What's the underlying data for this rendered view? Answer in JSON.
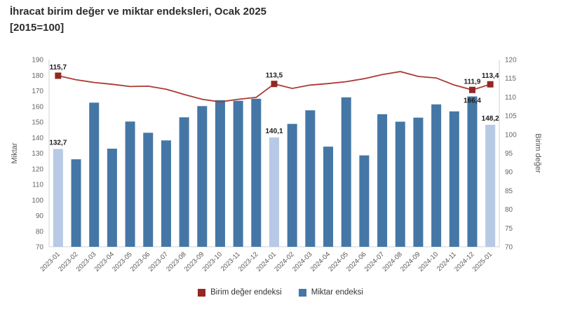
{
  "chart_data": {
    "type": "combo-bar-line",
    "title": "İhracat birim değer ve miktar endeksleri, Ocak 2025",
    "subtitle": "[2015=100]",
    "categories": [
      "2023-01",
      "2023-02",
      "2023-03",
      "2023-04",
      "2023-05",
      "2023-06",
      "2023-07",
      "2023-08",
      "2023-09",
      "2023-10",
      "2023-11",
      "2023-12",
      "2024-01",
      "2024-02",
      "2024-03",
      "2024-04",
      "2024-05",
      "2024-06",
      "2024-07",
      "2024-08",
      "2024-09",
      "2024-10",
      "2024-11",
      "2024-12",
      "2025-01"
    ],
    "series": [
      {
        "name": "Birim değer endeksi",
        "type": "line",
        "axis": "right",
        "color": "#942722",
        "line_color": "#ab3a33",
        "values": [
          115.7,
          114.6,
          113.9,
          113.4,
          112.8,
          112.9,
          112.1,
          110.7,
          109.4,
          108.7,
          109.4,
          109.9,
          113.5,
          112.3,
          113.2,
          113.6,
          114.1,
          114.9,
          116.0,
          116.8,
          115.5,
          115.1,
          113.2,
          111.9,
          113.4
        ]
      },
      {
        "name": "Miktar endeksi",
        "type": "bar",
        "axis": "left",
        "color": "#4577a6",
        "highlight_color": "#b7c9e5",
        "values": [
          132.7,
          126.1,
          162.4,
          132.9,
          150.3,
          143.1,
          138.2,
          153.0,
          160.2,
          164.0,
          163.6,
          164.9,
          140.1,
          148.8,
          157.5,
          134.2,
          165.8,
          128.6,
          155.0,
          150.2,
          152.8,
          161.3,
          156.8,
          166.4,
          148.2
        ]
      }
    ],
    "marker_indices": [
      0,
      12,
      23,
      24
    ],
    "highlighted_bar_indices": [
      0,
      12,
      24
    ],
    "bar_labels": {
      "0": "132,7",
      "12": "140,1",
      "23": "166,4",
      "24": "148,2"
    },
    "line_labels": {
      "0": "115,7",
      "12": "113,5",
      "23": "111,9",
      "24": "113,4"
    },
    "axes": {
      "left_title": "Miktar",
      "left_min": 70,
      "left_max": 190,
      "left_step": 10,
      "right_title": "Birim değer",
      "right_min": 70,
      "right_max": 120,
      "right_step": 5
    },
    "grid": false,
    "legend_position": "bottom"
  },
  "legend": {
    "items": [
      {
        "label": "Birim değer endeksi",
        "color": "#942722"
      },
      {
        "label": "Miktar endeksi",
        "color": "#4577a6"
      }
    ]
  }
}
